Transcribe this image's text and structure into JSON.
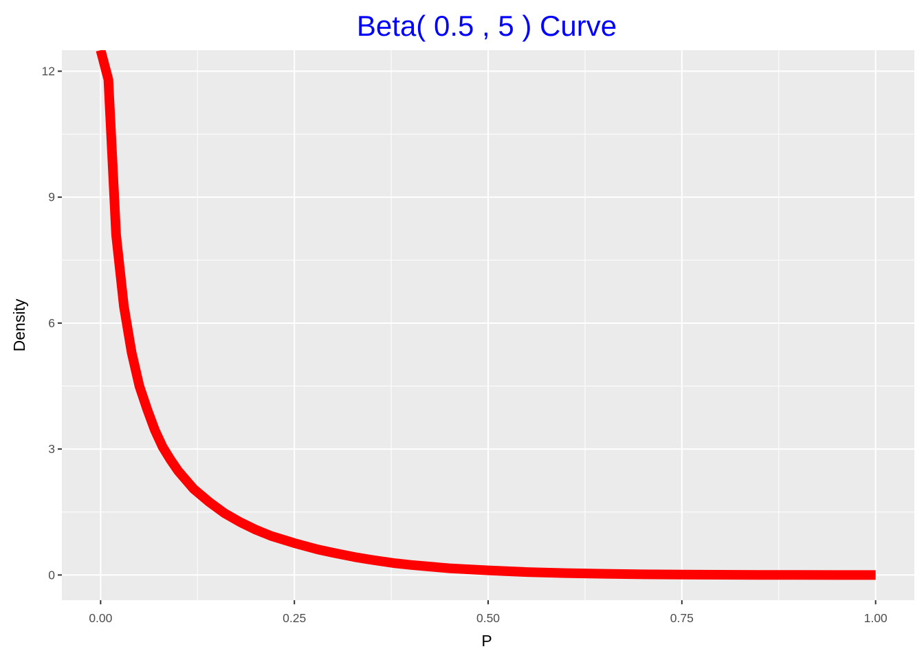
{
  "chart_data": {
    "type": "line",
    "title": "Beta( 0.5 , 5 ) Curve",
    "xlabel": "P",
    "ylabel": "Density",
    "xlim": [
      -0.05,
      1.05
    ],
    "ylim": [
      -0.6,
      12.5
    ],
    "x_ticks": [
      0.0,
      0.25,
      0.5,
      0.75,
      1.0
    ],
    "x_tick_labels": [
      "0.00",
      "0.25",
      "0.50",
      "0.75",
      "1.00"
    ],
    "y_ticks": [
      0,
      3,
      6,
      9,
      12
    ],
    "y_tick_labels": [
      "0",
      "3",
      "6",
      "9",
      "12"
    ],
    "grid": true,
    "legend": "none",
    "series": [
      {
        "color": "#ff0000",
        "x": [
          0.0,
          0.01,
          0.02,
          0.03,
          0.04,
          0.05,
          0.06,
          0.07,
          0.08,
          0.09,
          0.1,
          0.12,
          0.14,
          0.16,
          0.18,
          0.2,
          0.22,
          0.25,
          0.28,
          0.3,
          0.33,
          0.35,
          0.38,
          0.4,
          0.45,
          0.5,
          0.55,
          0.6,
          0.65,
          0.7,
          0.75,
          0.8,
          0.85,
          0.9,
          0.95,
          1.0
        ],
        "y": [
          12.5,
          11.8,
          8.1,
          6.4,
          5.3,
          4.5,
          3.95,
          3.45,
          3.05,
          2.75,
          2.48,
          2.05,
          1.74,
          1.47,
          1.26,
          1.08,
          0.93,
          0.76,
          0.61,
          0.53,
          0.42,
          0.36,
          0.28,
          0.24,
          0.16,
          0.11,
          0.07,
          0.045,
          0.028,
          0.017,
          0.009,
          0.005,
          0.002,
          0.001,
          0.0,
          0.0
        ]
      }
    ]
  }
}
